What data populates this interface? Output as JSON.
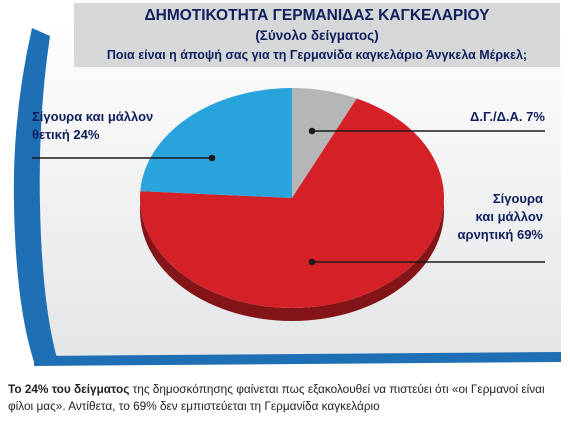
{
  "header": {
    "title": "ΔΗΜΟΤΙΚΟΤΗΤΑ ΓΕΡΜΑΝΙΔΑΣ ΚΑΓΚΕΛΑΡΙΟΥ",
    "subtitle": "(Σύνολο δείγματος)",
    "question": "Ποια είναι η άποψή σας για τη Γερμανίδα καγκελάριο Άνγκελα Μέρκελ;"
  },
  "colors": {
    "negative": "#d42027",
    "positive": "#29a3dc",
    "dk": "#b5b6b8",
    "frame": "#1f6fb4",
    "text": "#0f1f5c"
  },
  "chart_data": {
    "type": "pie",
    "title": "ΔΗΜΟΤΙΚΟΤΗΤΑ ΓΕΡΜΑΝΙΔΑΣ ΚΑΓΚΕΛΑΡΙΟΥ",
    "subtitle": "(Σύνολο δείγματος)",
    "slices": [
      {
        "label_lines": [
          "Δ.Γ./Δ.Α. 7%"
        ],
        "value": 7,
        "color": "#b5b6b8"
      },
      {
        "label_lines": [
          "Σίγουρα",
          "και μάλλον",
          "αρνητική 69%"
        ],
        "value": 69,
        "color": "#d42027"
      },
      {
        "label_lines": [
          "Σίγουρα και μάλλον",
          "θετική 24%"
        ],
        "value": 24,
        "color": "#29a3dc"
      }
    ]
  },
  "caption": {
    "bold": "Το 24% του δείγματος",
    "rest": " της δημοσκόπησης φαίνεται πως εξακολουθεί να πιστεύει ότι «οι Γερμανοί είναι φίλοι μας». Αντίθετα, το 69% δεν εμπιστεύεται τη Γερμανίδα καγκελάριο"
  }
}
